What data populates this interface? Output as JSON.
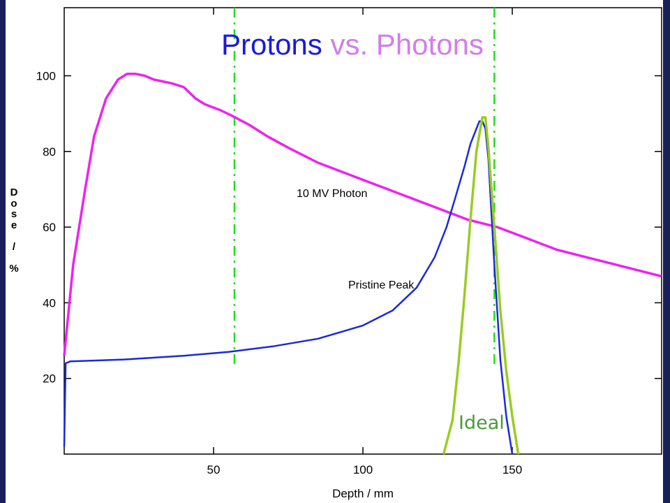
{
  "title": {
    "part1": "Protons",
    "part2": "vs. Photons"
  },
  "colors": {
    "frame": "#1a1f5c",
    "photon": "#ee22ee",
    "pristine": "#1a2ad8",
    "ideal": "#99cc22",
    "guide": "#22dd22",
    "title1": "#1a1ad8",
    "title2": "#d27ee8",
    "ideal_text": "#4a9a3a"
  },
  "chart_data": {
    "type": "line",
    "xlabel": "Depth / mm",
    "ylabel": "Dose / %",
    "ylabel_chars": [
      "D",
      "o",
      "s",
      "e",
      "",
      "/",
      "",
      "%"
    ],
    "xlim": [
      0,
      200
    ],
    "ylim": [
      0,
      118
    ],
    "xticks": [
      50,
      100,
      150
    ],
    "yticks": [
      20,
      40,
      60,
      80,
      100
    ],
    "guides_x": [
      57,
      144
    ],
    "annotations": {
      "photon": "10 MV Photon",
      "pristine": "Pristine Peak",
      "ideal": "Ideal"
    },
    "series": [
      {
        "name": "10 MV Photon",
        "color": "#ee22ee",
        "x": [
          0,
          3,
          7,
          10,
          14,
          18,
          21,
          24,
          27,
          30,
          36,
          40,
          44,
          47,
          52,
          56,
          62,
          68,
          75,
          85,
          95,
          105,
          115,
          125,
          135,
          145,
          155,
          165,
          175,
          185,
          195,
          200
        ],
        "y": [
          26,
          50,
          70,
          84,
          94,
          99,
          100.5,
          100.5,
          100,
          99,
          98,
          97,
          94,
          92.5,
          91,
          89.5,
          87,
          84,
          81,
          77,
          74,
          71,
          68,
          65,
          62,
          60,
          57,
          54,
          52,
          50,
          48,
          47
        ]
      },
      {
        "name": "Pristine Peak",
        "color": "#1a2ad8",
        "x": [
          0,
          0.5,
          2,
          20,
          40,
          55,
          70,
          85,
          100,
          110,
          118,
          124,
          128,
          131,
          134,
          136,
          138,
          139,
          140,
          141,
          142,
          144,
          146,
          148,
          150
        ],
        "y": [
          2,
          24,
          24.5,
          25,
          26,
          27,
          28.5,
          30.5,
          34,
          38,
          44,
          52,
          60,
          68,
          76,
          82,
          86,
          88,
          88,
          86,
          78,
          50,
          25,
          10,
          0
        ]
      },
      {
        "name": "Ideal",
        "color": "#99cc22",
        "x": [
          127,
          130,
          132,
          134,
          136,
          138,
          140,
          141,
          142,
          144,
          146,
          148,
          150,
          152
        ],
        "y": [
          0,
          9,
          24,
          42,
          62,
          80,
          89,
          89,
          81,
          60,
          38,
          22,
          10,
          0
        ]
      }
    ]
  }
}
